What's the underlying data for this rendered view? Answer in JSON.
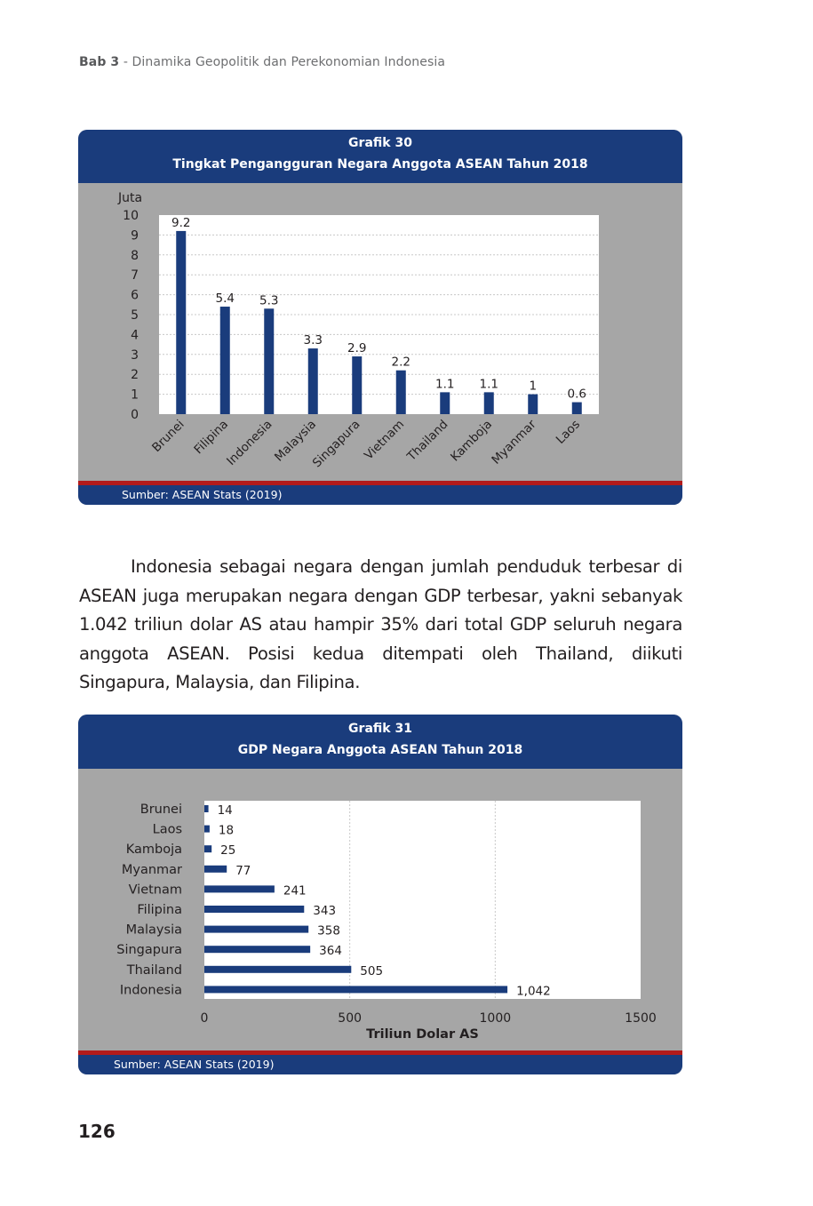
{
  "running_head": {
    "chapter": "Bab 3",
    "separator": " - ",
    "title": "Dinamika Geopolitik dan Perekonomian Indonesia"
  },
  "figure30": {
    "label": "Grafik 30",
    "title": "Tingkat Pengangguran Negara Anggota ASEAN Tahun 2018",
    "source": "Sumber: ASEAN Stats (2019)",
    "colors": {
      "header": "#1a3c7c",
      "bar": "#1a3c7c",
      "panel": "#a6a6a6",
      "rule": "#b31b1b"
    },
    "chart_data": {
      "type": "bar",
      "ylabel": "Juta",
      "ylim": [
        0,
        10
      ],
      "yticks": [
        0,
        1,
        2,
        3,
        4,
        5,
        6,
        7,
        8,
        9,
        10
      ],
      "grid": true,
      "categories": [
        "Brunei",
        "Filipina",
        "Indonesia",
        "Malaysia",
        "Singapura",
        "Vietnam",
        "Thailand",
        "Kamboja",
        "Myanmar",
        "Laos"
      ],
      "values": [
        9.2,
        5.4,
        5.3,
        3.3,
        2.9,
        2.2,
        1.1,
        1.1,
        1,
        0.6
      ],
      "data_labels": [
        "9.2",
        "5.4",
        "5.3",
        "3.3",
        "2.9",
        "2.2",
        "1.1",
        "1.1",
        "1",
        "0.6"
      ]
    }
  },
  "paragraph": "Indonesia sebagai negara dengan jumlah penduduk terbesar di ASEAN juga merupakan negara dengan GDP terbesar, yakni sebanyak 1.042 triliun dolar AS atau hampir 35% dari total GDP seluruh negara anggota ASEAN. Posisi kedua ditempati oleh Thailand, diikuti Singapura, Malaysia, dan Filipina.",
  "figure31": {
    "label": "Grafik 31",
    "title": "GDP Negara Anggota ASEAN Tahun 2018",
    "source": "Sumber: ASEAN Stats (2019)",
    "colors": {
      "header": "#1a3c7c",
      "bar": "#1a3c7c",
      "panel": "#a6a6a6",
      "rule": "#b31b1b"
    },
    "chart_data": {
      "type": "bar",
      "orientation": "horizontal",
      "xlabel": "Triliun Dolar AS",
      "xlim": [
        0,
        1500
      ],
      "xticks": [
        0,
        500,
        1000,
        1500
      ],
      "grid": true,
      "categories": [
        "Brunei",
        "Laos",
        "Kamboja",
        "Myanmar",
        "Vietnam",
        "Filipina",
        "Malaysia",
        "Singapura",
        "Thailand",
        "Indonesia"
      ],
      "values": [
        14,
        18,
        25,
        77,
        241,
        343,
        358,
        364,
        505,
        1042
      ],
      "data_labels": [
        "14",
        "18",
        "25",
        "77",
        "241",
        "343",
        "358",
        "364",
        "505",
        "1,042"
      ]
    }
  },
  "page_number": "126"
}
